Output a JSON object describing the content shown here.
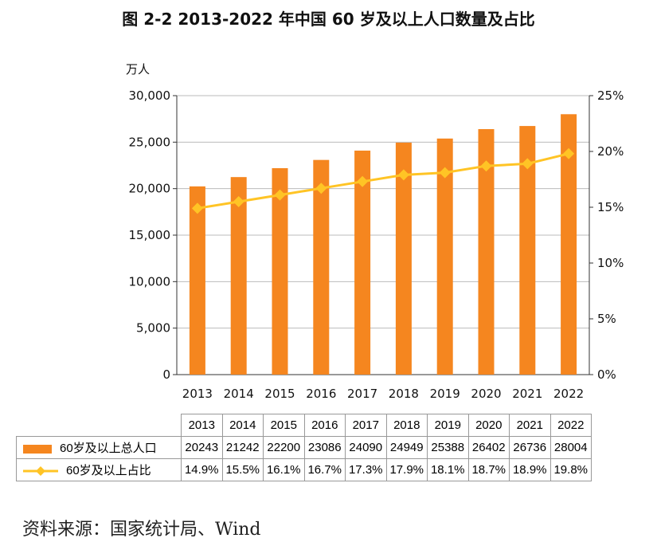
{
  "chart_data": {
    "type": "bar+line",
    "title": "图 2-2 2013-2022 年中国 60 岁及以上人口数量及占比",
    "ylabel_left": "万人",
    "categories": [
      "2013",
      "2014",
      "2015",
      "2016",
      "2017",
      "2018",
      "2019",
      "2020",
      "2021",
      "2022"
    ],
    "series": [
      {
        "name": "60岁及以上总人口",
        "type": "bar",
        "axis": "left",
        "color": "#F5861F",
        "values": [
          20243,
          21242,
          22200,
          23086,
          24090,
          24949,
          25388,
          26402,
          26736,
          28004
        ]
      },
      {
        "name": "60岁及以上占比",
        "type": "line",
        "axis": "right",
        "color": "#FFC425",
        "values": [
          14.9,
          15.5,
          16.1,
          16.7,
          17.3,
          17.9,
          18.1,
          18.7,
          18.9,
          19.8
        ],
        "labels": [
          "14.9%",
          "15.5%",
          "16.1%",
          "16.7%",
          "17.3%",
          "17.9%",
          "18.1%",
          "18.7%",
          "18.9%",
          "19.8%"
        ]
      }
    ],
    "ylim_left": [
      0,
      30000
    ],
    "yticks_left": [
      "0",
      "5,000",
      "10,000",
      "15,000",
      "20,000",
      "25,000",
      "30,000"
    ],
    "ylim_right": [
      0,
      25
    ],
    "yticks_right": [
      "0%",
      "5%",
      "10%",
      "15%",
      "20%",
      "25%"
    ],
    "grid": true,
    "legend": "bottom-table"
  },
  "source": "资料来源：国家统计局、Wind"
}
